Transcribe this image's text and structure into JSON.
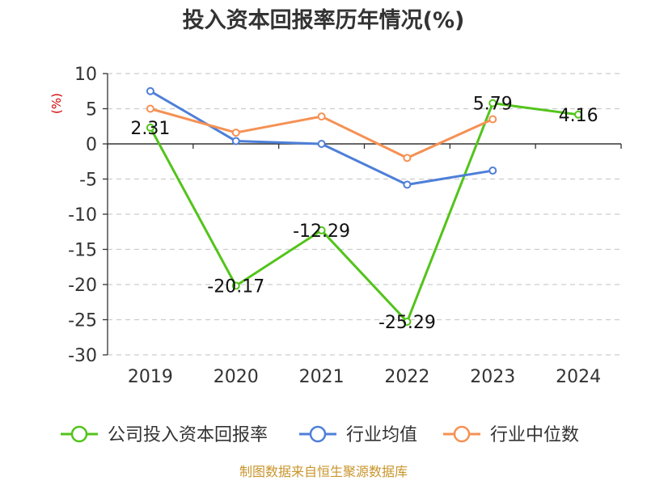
{
  "chart_data": {
    "type": "line",
    "title": "投入资本回报率历年情况(%)",
    "unit_label": "(%)",
    "categories": [
      "2019",
      "2020",
      "2021",
      "2022",
      "2023",
      "2024"
    ],
    "ylim": [
      -30,
      10
    ],
    "yticks": [
      10,
      5,
      0,
      -5,
      -10,
      -15,
      -20,
      -25,
      -30
    ],
    "grid": true,
    "legend_position": "bottom",
    "series": [
      {
        "name": "公司投入资本回报率",
        "color": "#52c41a",
        "values": [
          2.31,
          -20.17,
          -12.29,
          -25.29,
          5.79,
          4.16
        ],
        "labels": [
          "2.31",
          "-20.17",
          "-12.29",
          "-25.29",
          "5.79",
          "4.16"
        ]
      },
      {
        "name": "行业均值",
        "color": "#4e7fd8",
        "values": [
          7.5,
          0.4,
          0.0,
          -5.8,
          -3.8,
          null
        ]
      },
      {
        "name": "行业中位数",
        "color": "#f59154",
        "values": [
          5.0,
          1.6,
          3.9,
          -2.0,
          3.5,
          null
        ]
      }
    ],
    "source": "制图数据来自恒生聚源数据库"
  }
}
